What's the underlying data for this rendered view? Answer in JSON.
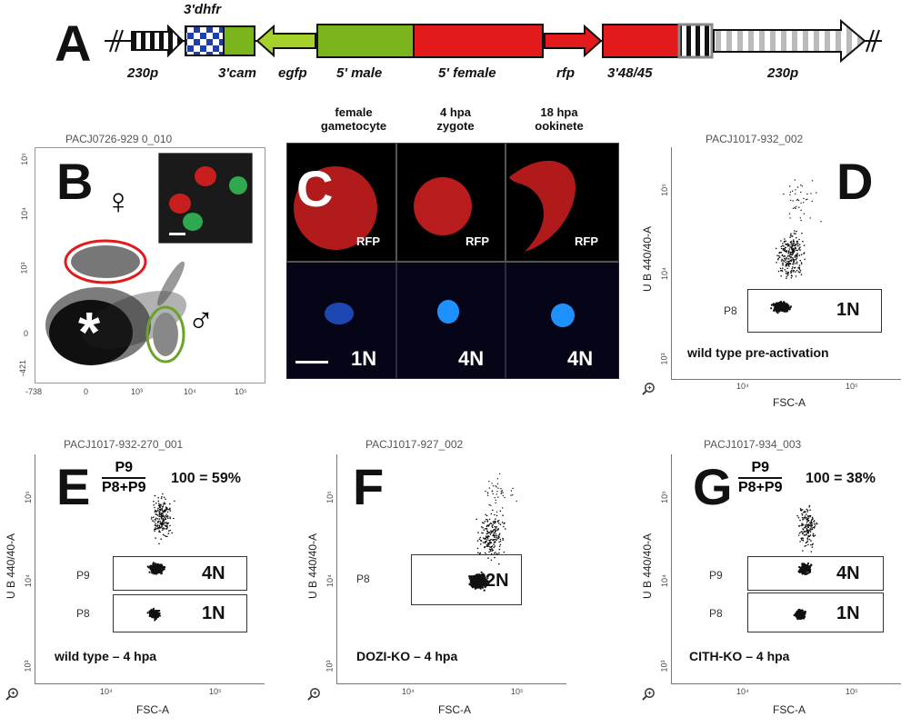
{
  "panels": {
    "A": {
      "letter": "A",
      "labels_top": {
        "dhfr3": "3'dhfr"
      },
      "labels_bottom": {
        "p230_left": "230p",
        "cam3": "3'cam",
        "egfp": "egfp",
        "male5": "5' male",
        "female5": "5' female",
        "rfp": "rfp",
        "p48_45": "3'48/45",
        "p230_right": "230p"
      },
      "colors": {
        "green": "#7ab51d",
        "red": "#e31a1c",
        "blue": "#1f3fa8"
      }
    },
    "B": {
      "letter": "B",
      "file": "PACJ0726-929 0_010",
      "female_symbol": "♀",
      "male_symbol": "♂",
      "asterisk": "*",
      "x_ticks": [
        "-738",
        "0",
        "10³",
        "10⁴",
        "10⁵"
      ],
      "y_ticks": [
        "10⁵",
        "10⁴",
        "10³",
        "0",
        "-421"
      ]
    },
    "C": {
      "letter": "C",
      "stages": [
        "female\ngametocyte",
        "4 hpa\nzygote",
        "18 hpa\nookinete"
      ],
      "rfp_labels": [
        "RFP",
        "RFP",
        "RFP"
      ],
      "dna_labels": [
        "1N",
        "4N",
        "4N"
      ]
    },
    "D": {
      "letter": "D",
      "file": "PACJ1017-932_002",
      "ylabel": "U B 440/40-A",
      "xlabel": "FSC-A",
      "gates": [
        {
          "name": "P8",
          "ploidy": "1N"
        }
      ],
      "caption": "wild type pre-activation",
      "y_ticks": [
        "10⁵",
        "10⁴",
        "10³"
      ],
      "x_ticks": [
        "10⁴",
        "10⁵"
      ]
    },
    "E": {
      "letter": "E",
      "file": "PACJ1017-932-270_001",
      "ylabel": "U B 440/40-A",
      "xlabel": "FSC-A",
      "formula": {
        "num": "P9",
        "den": "P8+P9",
        "rest": "100 = 59%"
      },
      "gates": [
        {
          "name": "P9",
          "ploidy": "4N"
        },
        {
          "name": "P8",
          "ploidy": "1N"
        }
      ],
      "caption": "wild type – 4 hpa",
      "y_ticks": [
        "10⁵",
        "10⁴",
        "10³"
      ],
      "x_ticks": [
        "10⁴",
        "10⁵"
      ]
    },
    "F": {
      "letter": "F",
      "file": "PACJ1017-927_002",
      "ylabel": "U B 440/40-A",
      "xlabel": "FSC-A",
      "gates": [
        {
          "name": "P8",
          "ploidy": "2N"
        }
      ],
      "caption": "DOZI-KO – 4 hpa",
      "y_ticks": [
        "10⁵",
        "10⁴",
        "10³"
      ],
      "x_ticks": [
        "10⁴",
        "10⁵"
      ]
    },
    "G": {
      "letter": "G",
      "file": "PACJ1017-934_003",
      "ylabel": "U B 440/40-A",
      "xlabel": "FSC-A",
      "formula": {
        "num": "P9",
        "den": "P8+P9",
        "rest": "100 = 38%"
      },
      "gates": [
        {
          "name": "P9",
          "ploidy": "4N"
        },
        {
          "name": "P8",
          "ploidy": "1N"
        }
      ],
      "caption": "CITH-KO – 4 hpa",
      "y_ticks": [
        "10⁵",
        "10⁴",
        "10³"
      ],
      "x_ticks": [
        "10⁴",
        "10⁵"
      ]
    }
  }
}
